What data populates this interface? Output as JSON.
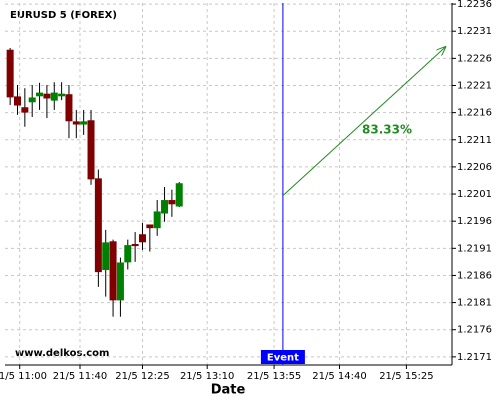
{
  "chart_data": {
    "type": "candlestick",
    "title": "EURUSD 5 (FOREX)",
    "x_label": "Date",
    "watermark": "www.delkos.com",
    "up_color": "#008000",
    "down_color": "#800000",
    "grid": true,
    "x": [
      0,
      1,
      2,
      3,
      4,
      5,
      6,
      7,
      8,
      9,
      10,
      11,
      12,
      13,
      14,
      15,
      16,
      17,
      18,
      19,
      20,
      21,
      22,
      23
    ],
    "open": [
      1.22275,
      1.22189,
      1.22169,
      1.2218,
      1.22191,
      1.22194,
      1.22183,
      1.22191,
      1.22193,
      1.22143,
      1.22139,
      1.22145,
      1.22038,
      1.21871,
      1.21922,
      1.21815,
      1.21885,
      1.21917,
      1.21935,
      1.21953,
      1.21948,
      1.21975,
      1.21998,
      1.21988
    ],
    "high": [
      1.22279,
      1.22211,
      1.22205,
      1.22211,
      1.22215,
      1.22211,
      1.22216,
      1.22216,
      1.22211,
      1.22165,
      1.22165,
      1.22165,
      1.22055,
      1.21944,
      1.21926,
      1.21893,
      1.21926,
      1.2194,
      1.21957,
      1.21953,
      1.21999,
      1.22023,
      1.22018,
      1.22032
    ],
    "low": [
      1.22174,
      1.22156,
      1.22134,
      1.22152,
      1.22165,
      1.2215,
      1.22165,
      1.22183,
      1.22113,
      1.22113,
      1.22119,
      1.22027,
      1.21839,
      1.21821,
      1.21784,
      1.21784,
      1.21871,
      1.21885,
      1.21907,
      1.21904,
      1.21933,
      1.21959,
      1.21968,
      1.21986
    ],
    "close": [
      1.22189,
      1.22174,
      1.22161,
      1.22187,
      1.22196,
      1.22187,
      1.22196,
      1.22194,
      1.22145,
      1.22139,
      1.22143,
      1.22038,
      1.21867,
      1.2192,
      1.21815,
      1.21883,
      1.21915,
      1.21915,
      1.21922,
      1.21948,
      1.21977,
      1.21998,
      1.21992,
      1.22029
    ],
    "xlim": [
      -0.7,
      60.1
    ],
    "ylim": [
      1.21695,
      1.22362
    ],
    "yticks": [
      1.2171,
      1.2176,
      1.2181,
      1.2186,
      1.2191,
      1.2196,
      1.2201,
      1.2206,
      1.2211,
      1.2216,
      1.2221,
      1.2226,
      1.2231,
      1.2236
    ],
    "xticks": [
      {
        "value": 1.3,
        "label": "21/5 11:00"
      },
      {
        "value": 9.5,
        "label": "21/5 11:40"
      },
      {
        "value": 18,
        "label": "21/5 12:25"
      },
      {
        "value": 26.8,
        "label": "21/5 13:10"
      },
      {
        "value": 35.9,
        "label": "21/5 13:55"
      },
      {
        "value": 44.8,
        "label": "21/5 14:40"
      },
      {
        "value": 53.9,
        "label": "21/5 15:25"
      }
    ],
    "event": {
      "x": 37.1,
      "label": "Event",
      "color": "#0000ff"
    },
    "prediction": {
      "label": "83.33%",
      "color": "#228b22",
      "x": [
        37.1,
        59.2
      ],
      "y": [
        1.22007,
        1.22281
      ]
    }
  }
}
